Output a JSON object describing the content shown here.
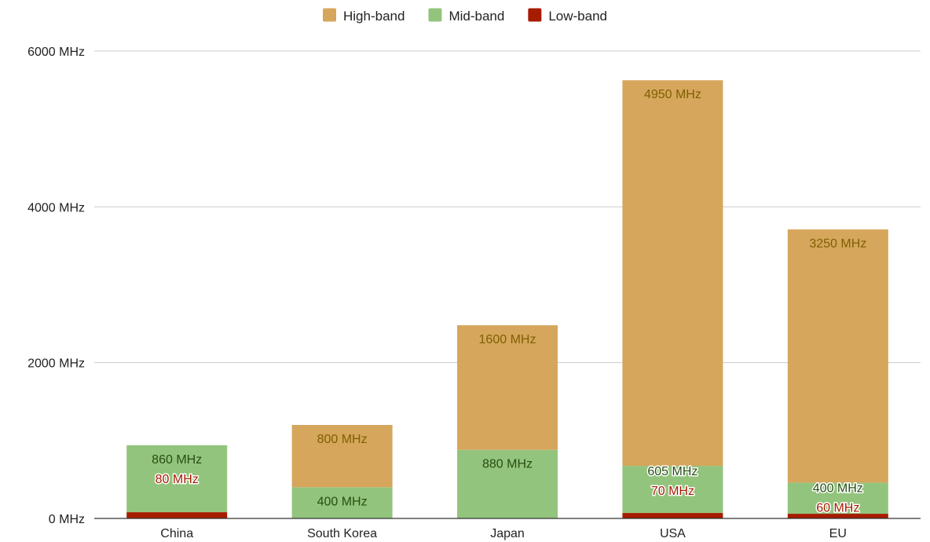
{
  "chart_data": {
    "type": "bar",
    "stacked": true,
    "categories": [
      "China",
      "South Korea",
      "Japan",
      "USA",
      "EU"
    ],
    "series": [
      {
        "name": "Low-band",
        "color": "#a61c00",
        "values": [
          80,
          0,
          0,
          70,
          60
        ],
        "labels": [
          "80 MHz",
          "",
          "",
          "70 MHz",
          "60 MHz"
        ],
        "label_color": "#a61c00"
      },
      {
        "name": "Mid-band",
        "color": "#93c47d",
        "values": [
          860,
          400,
          880,
          605,
          400
        ],
        "labels": [
          "860 MHz",
          "400 MHz",
          "880 MHz",
          "605 MHz",
          "400 MHz"
        ],
        "label_color": "#274e13"
      },
      {
        "name": "High-band",
        "color": "#d5a65c",
        "values": [
          0,
          800,
          1600,
          4950,
          3250
        ],
        "labels": [
          "",
          "800 MHz",
          "1600 MHz",
          "4950 MHz",
          "3250 MHz"
        ],
        "label_color": "#7f6000"
      }
    ],
    "legend_order": [
      "High-band",
      "Mid-band",
      "Low-band"
    ],
    "legend_position": "top",
    "ylim": [
      0,
      6000
    ],
    "yticks": [
      0,
      2000,
      4000,
      6000
    ],
    "ytick_labels": [
      "0 MHz",
      "2000 MHz",
      "4000 MHz",
      "6000 MHz"
    ],
    "grid": true,
    "title": "",
    "xlabel": "",
    "ylabel": ""
  }
}
